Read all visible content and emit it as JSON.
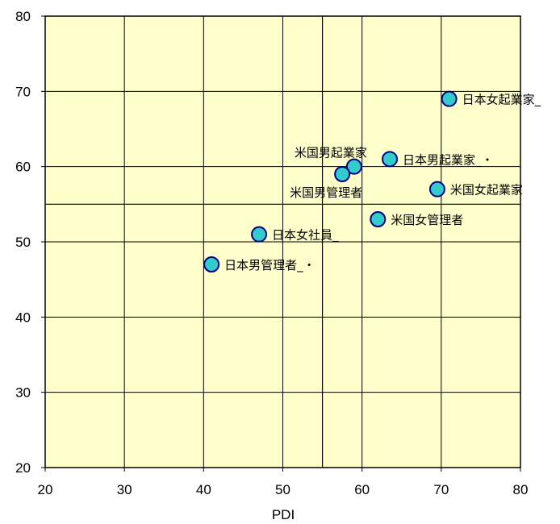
{
  "chart_data": {
    "type": "scatter",
    "title": "",
    "xlabel": "PDI",
    "ylabel": "",
    "xlim": [
      20,
      80
    ],
    "ylim": [
      20,
      80
    ],
    "x_ticks": [
      "20",
      "30",
      "40",
      "50",
      "60",
      "70",
      "80"
    ],
    "y_ticks": [
      "20",
      "30",
      "40",
      "50",
      "60",
      "70",
      "80"
    ],
    "grid": true,
    "reference_lines": {
      "x": 55,
      "y": 55
    },
    "plot_background": "#ffffcc",
    "marker_fill": "#33cccc",
    "marker_stroke": "#000080",
    "points": [
      {
        "label": "日本女起業家_",
        "x": 71,
        "y": 69,
        "label_pos": "right"
      },
      {
        "label": "日本男起業家_・",
        "x": 63.5,
        "y": 61,
        "label_pos": "right"
      },
      {
        "label": "米国男起業家",
        "x": 59,
        "y": 60,
        "label_pos": "above-left"
      },
      {
        "label": "米国男管理者",
        "x": 57.5,
        "y": 59,
        "label_pos": "below-left"
      },
      {
        "label": "米国女起業家",
        "x": 69.5,
        "y": 57,
        "label_pos": "right"
      },
      {
        "label": "米国女管理者",
        "x": 62,
        "y": 53,
        "label_pos": "right"
      },
      {
        "label": "日本女社員_",
        "x": 47,
        "y": 51,
        "label_pos": "right"
      },
      {
        "label": "日本男管理者_・",
        "x": 41,
        "y": 47,
        "label_pos": "right"
      }
    ]
  }
}
